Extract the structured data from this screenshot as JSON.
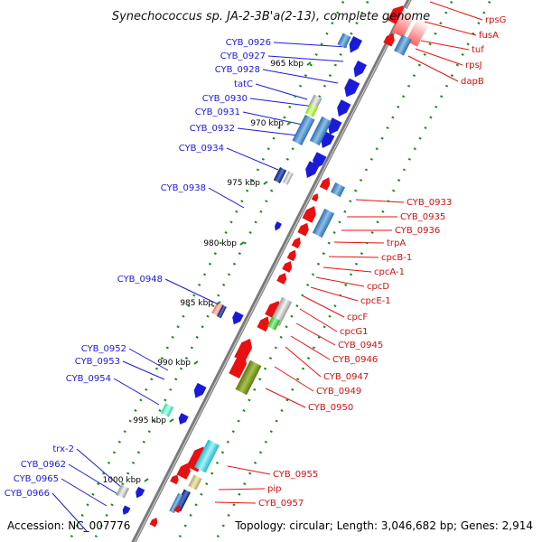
{
  "title": "Synechococcus sp. JA-2-3B'a(2-13), complete genome",
  "accession": "Accession: NC_007776",
  "summary": "Topology: circular; Length: 3,046,682 bp; Genes: 2,914",
  "kbp_ticks": [
    "965 kbp",
    "970 kbp",
    "975 kbp",
    "980 kbp",
    "985 kbp",
    "990 kbp",
    "995 kbp",
    "1000 kbp"
  ],
  "reverse_strand_genes": [
    "CYB_0926",
    "CYB_0927",
    "CYB_0928",
    "tatC",
    "CYB_0930",
    "CYB_0931",
    "CYB_0932",
    "CYB_0934",
    "CYB_0938",
    "CYB_0948",
    "CYB_0952",
    "CYB_0953",
    "CYB_0954",
    "trx-2",
    "CYB_0962",
    "CYB_0965",
    "CYB_0966"
  ],
  "forward_strand_genes": [
    "rpsG",
    "fusA",
    "tuf",
    "rpsJ",
    "dapB",
    "CYB_0933",
    "CYB_0935",
    "CYB_0936",
    "trpA",
    "cpcB-1",
    "cpcA-1",
    "cpcD",
    "cpcE-1",
    "cpcF",
    "cpcG1",
    "CYB_0945",
    "CYB_0946",
    "CYB_0947",
    "CYB_0949",
    "CYB_0950",
    "CYB_0955",
    "pip",
    "CYB_0957"
  ],
  "colors": {
    "reverse_strand": "#1a1ad8",
    "forward_strand": "#e81010",
    "backbone": "#8a8a8a",
    "gc_skew_dots": "#1a8a1a"
  }
}
